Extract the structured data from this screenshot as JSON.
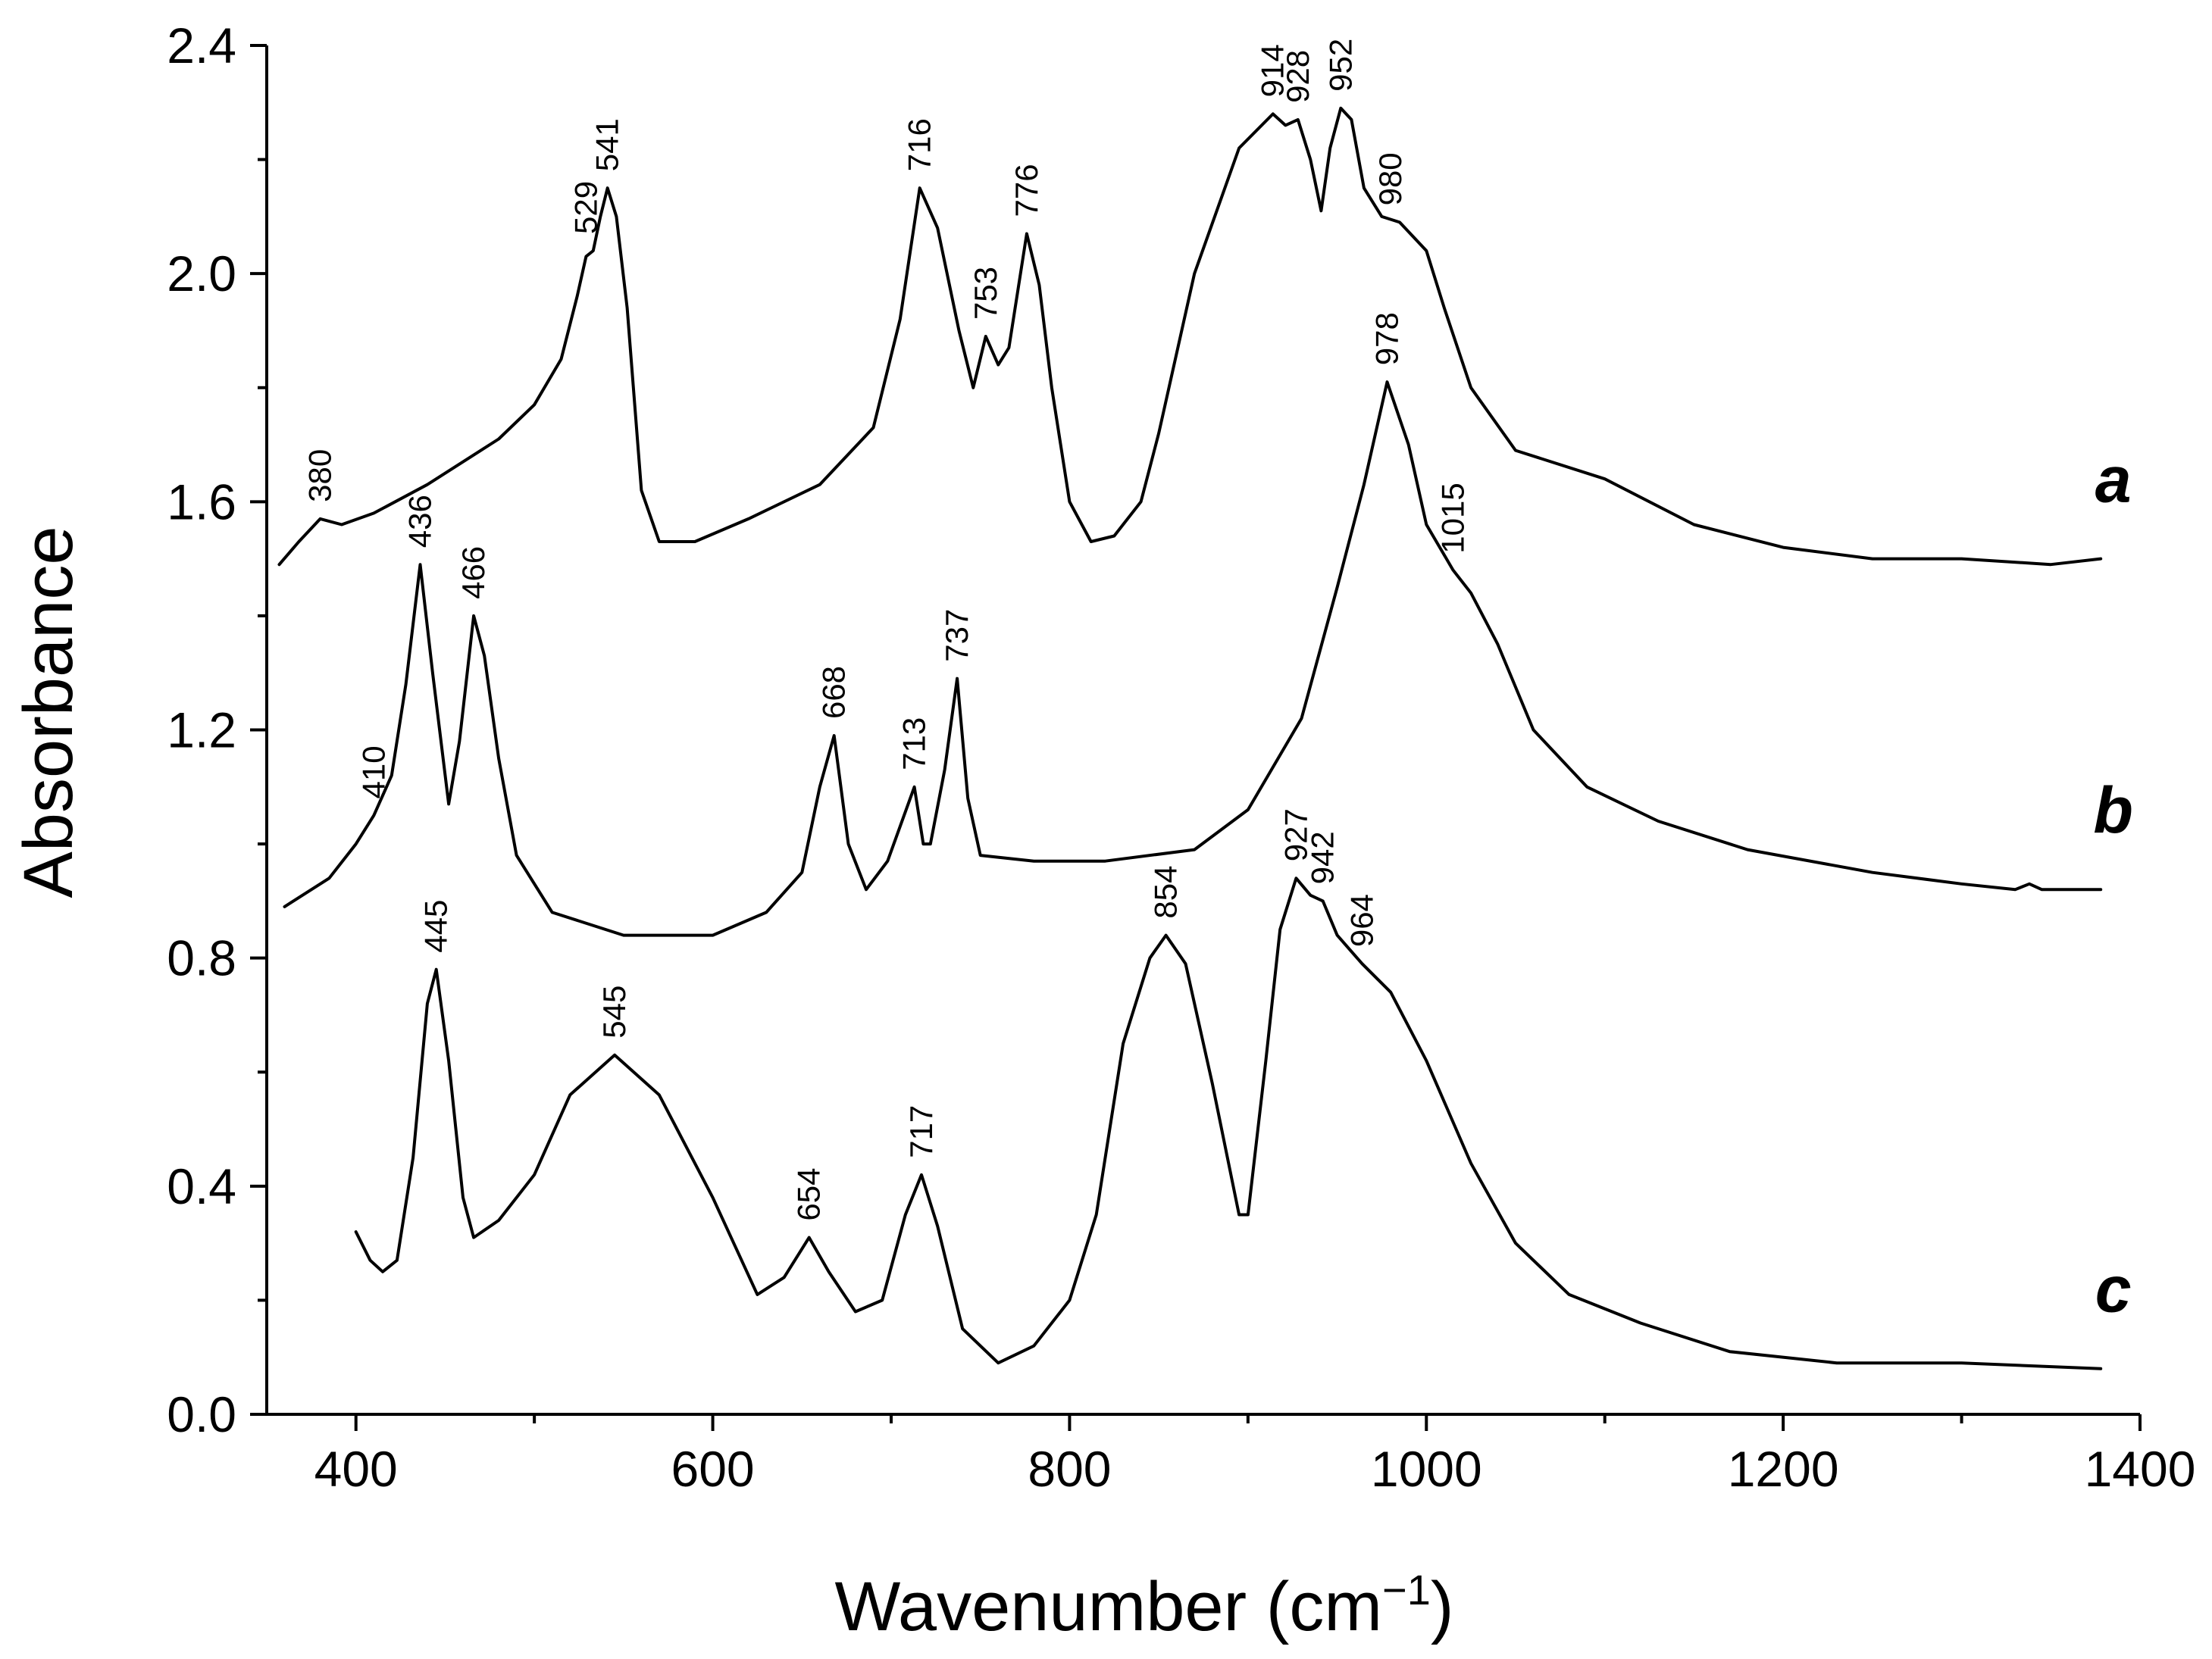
{
  "chart_data": {
    "type": "line",
    "xlabel": "Wavenumber (cm",
    "xlabel_sup": "−1",
    "xlabel_close": ")",
    "ylabel": "Absorbance",
    "xlim": [
      350,
      1400
    ],
    "ylim": [
      0.0,
      2.4
    ],
    "x_ticks": [
      400,
      600,
      800,
      1000,
      1200,
      1400
    ],
    "x_tick_labels": [
      "400",
      "600",
      "800",
      "1000",
      "1200",
      "1400"
    ],
    "y_ticks": [
      0.0,
      0.4,
      0.8,
      1.2,
      1.6,
      2.0,
      2.4
    ],
    "y_tick_labels": [
      "0.0",
      "0.4",
      "0.8",
      "1.2",
      "1.6",
      "2.0",
      "2.4"
    ],
    "grid": false,
    "series": [
      {
        "name": "a",
        "points": [
          [
            357,
            1.49
          ],
          [
            368,
            1.53
          ],
          [
            380,
            1.57
          ],
          [
            392,
            1.56
          ],
          [
            410,
            1.58
          ],
          [
            440,
            1.63
          ],
          [
            480,
            1.71
          ],
          [
            500,
            1.77
          ],
          [
            515,
            1.85
          ],
          [
            524,
            1.96
          ],
          [
            529,
            2.03
          ],
          [
            533,
            2.04
          ],
          [
            537,
            2.1
          ],
          [
            541,
            2.15
          ],
          [
            546,
            2.1
          ],
          [
            552,
            1.94
          ],
          [
            560,
            1.62
          ],
          [
            570,
            1.53
          ],
          [
            590,
            1.53
          ],
          [
            620,
            1.57
          ],
          [
            660,
            1.63
          ],
          [
            690,
            1.73
          ],
          [
            705,
            1.92
          ],
          [
            716,
            2.15
          ],
          [
            726,
            2.08
          ],
          [
            738,
            1.9
          ],
          [
            746,
            1.8
          ],
          [
            753,
            1.89
          ],
          [
            760,
            1.84
          ],
          [
            766,
            1.87
          ],
          [
            776,
            2.07
          ],
          [
            783,
            1.98
          ],
          [
            790,
            1.8
          ],
          [
            800,
            1.6
          ],
          [
            812,
            1.53
          ],
          [
            825,
            1.54
          ],
          [
            840,
            1.6
          ],
          [
            850,
            1.72
          ],
          [
            870,
            2.0
          ],
          [
            895,
            2.22
          ],
          [
            914,
            2.28
          ],
          [
            921,
            2.26
          ],
          [
            928,
            2.27
          ],
          [
            935,
            2.2
          ],
          [
            941,
            2.11
          ],
          [
            946,
            2.22
          ],
          [
            952,
            2.29
          ],
          [
            958,
            2.27
          ],
          [
            965,
            2.15
          ],
          [
            975,
            2.1
          ],
          [
            985,
            2.09
          ],
          [
            1000,
            2.04
          ],
          [
            1010,
            1.94
          ],
          [
            1025,
            1.8
          ],
          [
            1050,
            1.69
          ],
          [
            1100,
            1.64
          ],
          [
            1150,
            1.56
          ],
          [
            1200,
            1.52
          ],
          [
            1250,
            1.5
          ],
          [
            1300,
            1.5
          ],
          [
            1350,
            1.49
          ],
          [
            1378,
            1.5
          ]
        ]
      },
      {
        "name": "b",
        "points": [
          [
            360,
            0.89
          ],
          [
            385,
            0.94
          ],
          [
            400,
            1.0
          ],
          [
            410,
            1.05
          ],
          [
            420,
            1.12
          ],
          [
            428,
            1.28
          ],
          [
            436,
            1.49
          ],
          [
            443,
            1.3
          ],
          [
            452,
            1.07
          ],
          [
            458,
            1.18
          ],
          [
            466,
            1.4
          ],
          [
            472,
            1.33
          ],
          [
            480,
            1.15
          ],
          [
            490,
            0.98
          ],
          [
            510,
            0.88
          ],
          [
            550,
            0.84
          ],
          [
            600,
            0.84
          ],
          [
            630,
            0.88
          ],
          [
            650,
            0.95
          ],
          [
            660,
            1.1
          ],
          [
            668,
            1.19
          ],
          [
            676,
            1.0
          ],
          [
            686,
            0.92
          ],
          [
            698,
            0.97
          ],
          [
            713,
            1.1
          ],
          [
            718,
            1.0
          ],
          [
            722,
            1.0
          ],
          [
            730,
            1.13
          ],
          [
            737,
            1.29
          ],
          [
            743,
            1.08
          ],
          [
            750,
            0.98
          ],
          [
            780,
            0.97
          ],
          [
            820,
            0.97
          ],
          [
            870,
            0.99
          ],
          [
            900,
            1.06
          ],
          [
            930,
            1.22
          ],
          [
            950,
            1.45
          ],
          [
            965,
            1.63
          ],
          [
            978,
            1.81
          ],
          [
            990,
            1.7
          ],
          [
            1000,
            1.56
          ],
          [
            1015,
            1.48
          ],
          [
            1025,
            1.44
          ],
          [
            1040,
            1.35
          ],
          [
            1060,
            1.2
          ],
          [
            1090,
            1.1
          ],
          [
            1130,
            1.04
          ],
          [
            1180,
            0.99
          ],
          [
            1250,
            0.95
          ],
          [
            1300,
            0.93
          ],
          [
            1330,
            0.92
          ],
          [
            1338,
            0.93
          ],
          [
            1345,
            0.92
          ],
          [
            1378,
            0.92
          ]
        ]
      },
      {
        "name": "c",
        "points": [
          [
            400,
            0.32
          ],
          [
            408,
            0.27
          ],
          [
            415,
            0.25
          ],
          [
            423,
            0.27
          ],
          [
            432,
            0.45
          ],
          [
            440,
            0.72
          ],
          [
            445,
            0.78
          ],
          [
            452,
            0.62
          ],
          [
            460,
            0.38
          ],
          [
            466,
            0.31
          ],
          [
            480,
            0.34
          ],
          [
            500,
            0.42
          ],
          [
            520,
            0.56
          ],
          [
            545,
            0.63
          ],
          [
            570,
            0.56
          ],
          [
            600,
            0.38
          ],
          [
            625,
            0.21
          ],
          [
            640,
            0.24
          ],
          [
            654,
            0.31
          ],
          [
            665,
            0.25
          ],
          [
            680,
            0.18
          ],
          [
            695,
            0.2
          ],
          [
            708,
            0.35
          ],
          [
            717,
            0.42
          ],
          [
            726,
            0.33
          ],
          [
            740,
            0.15
          ],
          [
            760,
            0.09
          ],
          [
            780,
            0.12
          ],
          [
            800,
            0.2
          ],
          [
            815,
            0.35
          ],
          [
            830,
            0.65
          ],
          [
            845,
            0.8
          ],
          [
            854,
            0.84
          ],
          [
            865,
            0.79
          ],
          [
            880,
            0.58
          ],
          [
            895,
            0.35
          ],
          [
            900,
            0.35
          ],
          [
            910,
            0.62
          ],
          [
            918,
            0.85
          ],
          [
            927,
            0.94
          ],
          [
            935,
            0.91
          ],
          [
            942,
            0.9
          ],
          [
            950,
            0.84
          ],
          [
            964,
            0.79
          ],
          [
            980,
            0.74
          ],
          [
            1000,
            0.62
          ],
          [
            1025,
            0.44
          ],
          [
            1050,
            0.3
          ],
          [
            1080,
            0.21
          ],
          [
            1120,
            0.16
          ],
          [
            1170,
            0.11
          ],
          [
            1230,
            0.09
          ],
          [
            1300,
            0.09
          ],
          [
            1378,
            0.08
          ]
        ]
      }
    ],
    "series_labels": [
      {
        "text": "a",
        "x": 1385,
        "y": 1.6
      },
      {
        "text": "b",
        "x": 1385,
        "y": 1.02
      },
      {
        "text": "c",
        "x": 1385,
        "y": 0.18
      }
    ],
    "peak_labels": [
      {
        "text": "380",
        "x": 380,
        "y": 1.57
      },
      {
        "text": "529",
        "x": 529,
        "y": 2.04
      },
      {
        "text": "541",
        "x": 541,
        "y": 2.15
      },
      {
        "text": "716",
        "x": 716,
        "y": 2.15
      },
      {
        "text": "753",
        "x": 753,
        "y": 1.89
      },
      {
        "text": "776",
        "x": 776,
        "y": 2.07
      },
      {
        "text": "914",
        "x": 914,
        "y": 2.28
      },
      {
        "text": "928",
        "x": 928,
        "y": 2.27
      },
      {
        "text": "952",
        "x": 952,
        "y": 2.29
      },
      {
        "text": "980",
        "x": 980,
        "y": 2.09
      },
      {
        "text": "436",
        "x": 436,
        "y": 1.49
      },
      {
        "text": "466",
        "x": 466,
        "y": 1.4
      },
      {
        "text": "410",
        "x": 410,
        "y": 1.05
      },
      {
        "text": "668",
        "x": 668,
        "y": 1.19
      },
      {
        "text": "713",
        "x": 713,
        "y": 1.1
      },
      {
        "text": "737",
        "x": 737,
        "y": 1.29
      },
      {
        "text": "978",
        "x": 978,
        "y": 1.81
      },
      {
        "text": "1015",
        "x": 1015,
        "y": 1.48
      },
      {
        "text": "445",
        "x": 445,
        "y": 0.78
      },
      {
        "text": "545",
        "x": 545,
        "y": 0.63
      },
      {
        "text": "654",
        "x": 654,
        "y": 0.31
      },
      {
        "text": "717",
        "x": 717,
        "y": 0.42
      },
      {
        "text": "854",
        "x": 854,
        "y": 0.84
      },
      {
        "text": "927",
        "x": 927,
        "y": 0.94
      },
      {
        "text": "942",
        "x": 942,
        "y": 0.9
      },
      {
        "text": "964",
        "x": 964,
        "y": 0.79
      }
    ]
  }
}
